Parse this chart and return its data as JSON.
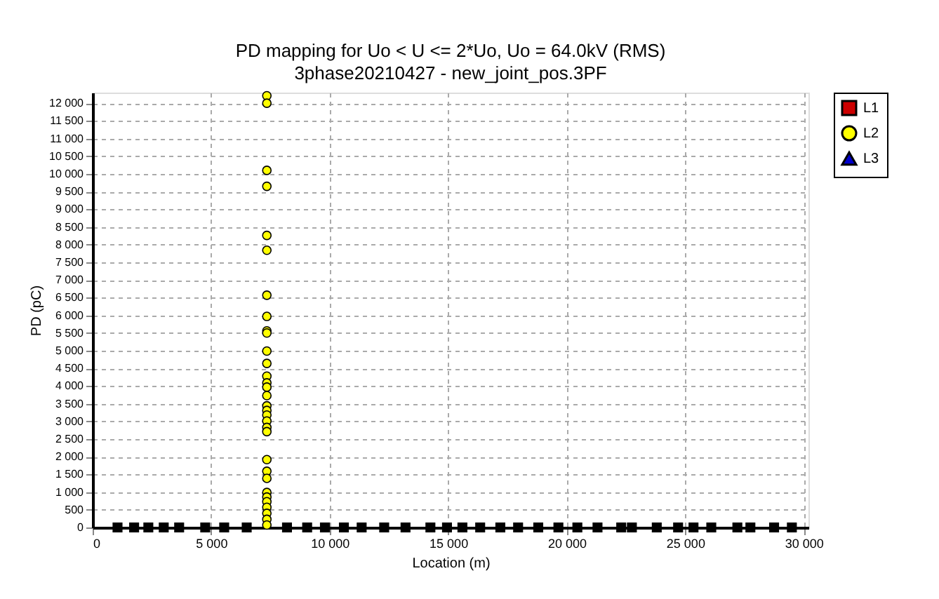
{
  "chart_data": {
    "type": "scatter",
    "title": "PD mapping for Uo < U <= 2*Uo, Uo = 64.0kV (RMS)",
    "subtitle": "3phase20210427 - new_joint_pos.3PF",
    "xlabel": "Location (m)",
    "ylabel": "PD (pC)",
    "series": [
      {
        "name": "L1",
        "color": "#cc0000",
        "marker": "square"
      },
      {
        "name": "L2",
        "color": "#ffff00",
        "marker": "circle",
        "x": [
          7350,
          7350,
          7350,
          7350,
          7350,
          7350,
          7350,
          7350,
          7350,
          7350,
          7350,
          7350,
          7350,
          7350,
          7350,
          7350,
          7350,
          7350,
          7350,
          7350,
          7350,
          7350,
          7350,
          7350,
          7350,
          7350,
          7350,
          7350,
          7350,
          7350,
          7350,
          7350
        ],
        "values": [
          12210,
          12000,
          10100,
          9650,
          8260,
          7840,
          6570,
          5970,
          5560,
          5500,
          4990,
          4640,
          4280,
          4090,
          3970,
          3730,
          3440,
          3310,
          3180,
          3010,
          2830,
          2710,
          1920,
          1590,
          1390,
          990,
          860,
          730,
          570,
          400,
          230,
          70
        ]
      },
      {
        "name": "L3",
        "color": "#0000cc",
        "marker": "triangle"
      },
      {
        "color": "#000000",
        "marker": "square",
        "x": [
          1050,
          1750,
          2350,
          3000,
          3650,
          4750,
          5550,
          6500,
          8200,
          9050,
          9800,
          10600,
          11350,
          12300,
          13200,
          14250,
          14950,
          15600,
          16350,
          17200,
          17950,
          18800,
          19650,
          20450,
          21300,
          22300,
          22750,
          23800,
          24700,
          25350,
          26100,
          27200,
          27750,
          28750,
          29500
        ],
        "values": [
          0,
          0,
          0,
          0,
          0,
          0,
          0,
          0,
          0,
          0,
          0,
          0,
          0,
          0,
          0,
          0,
          0,
          0,
          0,
          0,
          0,
          0,
          0,
          0,
          0,
          0,
          0,
          0,
          0,
          0,
          0,
          0,
          0,
          0,
          0
        ]
      }
    ],
    "xlim": [
      0,
      30200
    ],
    "ylim": [
      0,
      12300
    ],
    "xticks": [
      0,
      {
        "value": 5000,
        "label": "5 000"
      },
      {
        "value": 10000,
        "label": "10 000"
      },
      {
        "value": 15000,
        "label": "15 000"
      },
      {
        "value": 20000,
        "label": "20 000"
      },
      {
        "value": 25000,
        "label": "25 000"
      },
      {
        "value": 30000,
        "label": "30 000"
      }
    ],
    "yticks": [
      0,
      500,
      {
        "value": 1000,
        "label": "1 000"
      },
      {
        "value": 1500,
        "label": "1 500"
      },
      {
        "value": 2000,
        "label": "2 000"
      },
      {
        "value": 2500,
        "label": "2 500"
      },
      {
        "value": 3000,
        "label": "3 000"
      },
      {
        "value": 3500,
        "label": "3 500"
      },
      {
        "value": 4000,
        "label": "4 000"
      },
      {
        "value": 4500,
        "label": "4 500"
      },
      {
        "value": 5000,
        "label": "5 000"
      },
      {
        "value": 5500,
        "label": "5 500"
      },
      {
        "value": 6000,
        "label": "6 000"
      },
      {
        "value": 6500,
        "label": "6 500"
      },
      {
        "value": 7000,
        "label": "7 000"
      },
      {
        "value": 7500,
        "label": "7 500"
      },
      {
        "value": 8000,
        "label": "8 000"
      },
      {
        "value": 8500,
        "label": "8 500"
      },
      {
        "value": 9000,
        "label": "9 000"
      },
      {
        "value": 9500,
        "label": "9 500"
      },
      {
        "value": 10000,
        "label": "10 000"
      },
      {
        "value": 10500,
        "label": "10 500"
      },
      {
        "value": 11000,
        "label": "11 000"
      },
      {
        "value": 11500,
        "label": "11 500"
      },
      {
        "value": 12000,
        "label": "12 000"
      }
    ],
    "grid": true,
    "legend": "top right"
  }
}
